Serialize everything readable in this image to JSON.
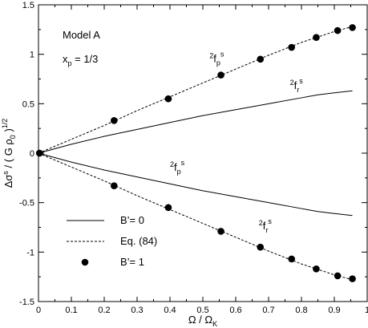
{
  "chart_data": {
    "type": "line",
    "xlabel": "Ω / Ω",
    "xlabel_sub": "K",
    "ylabel": "Δσ",
    "ylabel_sup": "s",
    "ylabel_rest": " / ( G ρ",
    "ylabel_sub": "0",
    "ylabel_end": " )",
    "ylabel_exp": "1/2",
    "xlim": [
      0,
      1
    ],
    "ylim": [
      -1.5,
      1.5
    ],
    "xticks": [
      "0",
      "0.1",
      "0.2",
      "0.3",
      "0.4",
      "0.5",
      "0.6",
      "0.7",
      "0.8",
      "0.9",
      "1"
    ],
    "yticks": [
      "-1.5",
      "-1",
      "-0.5",
      "0",
      "0.5",
      "1",
      "1.5"
    ],
    "annotations": {
      "model": "Model A",
      "xp_main": "x",
      "xp_sub": "p",
      "xp_value": " = 1/3",
      "label_fp_upper": {
        "pre": "2",
        "main": "f",
        "sub": "p",
        "sup": "s",
        "x": 0.52,
        "y": 0.92
      },
      "label_fr_upper": {
        "pre": "2",
        "main": "f",
        "sub": "r",
        "sup": "s",
        "x": 0.765,
        "y": 0.65
      },
      "label_fp_lower": {
        "pre": "2",
        "main": "f",
        "sub": "p",
        "sup": "s",
        "x": 0.4,
        "y": -0.18
      },
      "label_fr_lower": {
        "pre": "2",
        "main": "f",
        "sub": "r",
        "sup": "s",
        "x": 0.67,
        "y": -0.77
      }
    },
    "legend": {
      "placement": "bottom-left",
      "entries": [
        {
          "label": "B’= 0",
          "style": "solid"
        },
        {
          "label": "Eq. (84)",
          "style": "dashed"
        },
        {
          "label": "B’= 1",
          "style": "marker"
        }
      ]
    },
    "series": [
      {
        "style": "solid",
        "x": [
          0,
          0.1,
          0.2,
          0.3,
          0.4,
          0.5,
          0.6,
          0.7,
          0.8,
          0.85,
          0.9,
          0.955
        ],
        "y": [
          0,
          0.09,
          0.17,
          0.24,
          0.31,
          0.38,
          0.44,
          0.5,
          0.56,
          0.59,
          0.61,
          0.63
        ]
      },
      {
        "style": "solid",
        "x": [
          0,
          0.1,
          0.2,
          0.3,
          0.4,
          0.5,
          0.6,
          0.7,
          0.8,
          0.85,
          0.9,
          0.955
        ],
        "y": [
          0,
          -0.09,
          -0.17,
          -0.24,
          -0.31,
          -0.38,
          -0.44,
          -0.5,
          -0.56,
          -0.59,
          -0.61,
          -0.63
        ]
      },
      {
        "style": "dashed",
        "x": [
          0,
          0.1,
          0.2,
          0.3,
          0.4,
          0.5,
          0.6,
          0.7,
          0.8,
          0.9,
          0.955
        ],
        "y": [
          0,
          0.14,
          0.28,
          0.43,
          0.57,
          0.71,
          0.85,
          0.99,
          1.12,
          1.23,
          1.28
        ]
      },
      {
        "style": "dashed",
        "x": [
          0,
          0.1,
          0.2,
          0.3,
          0.4,
          0.5,
          0.6,
          0.7,
          0.8,
          0.9,
          0.955
        ],
        "y": [
          0,
          -0.14,
          -0.28,
          -0.43,
          -0.57,
          -0.71,
          -0.85,
          -0.99,
          -1.12,
          -1.23,
          -1.28
        ]
      },
      {
        "style": "marker",
        "x": [
          0.003,
          0.23,
          0.395,
          0.555,
          0.675,
          0.77,
          0.845,
          0.91,
          0.955
        ],
        "y": [
          0,
          0.33,
          0.55,
          0.79,
          0.95,
          1.07,
          1.17,
          1.24,
          1.27
        ]
      },
      {
        "style": "marker",
        "x": [
          0.003,
          0.23,
          0.395,
          0.555,
          0.675,
          0.77,
          0.845,
          0.91,
          0.955
        ],
        "y": [
          0,
          -0.33,
          -0.55,
          -0.79,
          -0.95,
          -1.07,
          -1.17,
          -1.24,
          -1.27
        ]
      }
    ]
  }
}
